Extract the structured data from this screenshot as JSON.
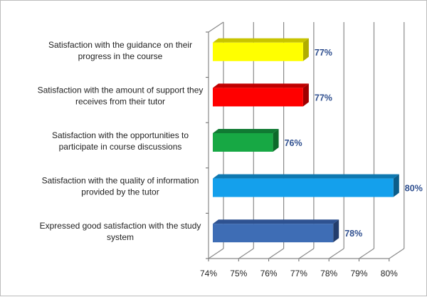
{
  "chart_data": {
    "type": "bar",
    "orientation": "horizontal",
    "style": "3d",
    "title": "",
    "xlabel": "",
    "ylabel": "",
    "categories": [
      [
        "Satisfaction with the guidance on their",
        "progress in the course"
      ],
      [
        "Satisfaction with the amount of support they",
        "receives from their tutor"
      ],
      [
        "Satisfaction with the opportunities to",
        "participate in course discussions"
      ],
      [
        "Satisfaction with the quality of information",
        "provided by the tutor"
      ],
      [
        "Expressed good satisfaction with the study",
        "system"
      ]
    ],
    "values": [
      77,
      77,
      76,
      80,
      78
    ],
    "data_labels": [
      "77%",
      "77%",
      "76%",
      "80%",
      "78%"
    ],
    "colors": [
      "#ffff00",
      "#ff0000",
      "#17a844",
      "#14a0ec",
      "#3e6db5"
    ],
    "side_colors": [
      "#b0ad00",
      "#a00000",
      "#0d6a2a",
      "#0b5d8a",
      "#233d6c"
    ],
    "top_colors": [
      "#c8c400",
      "#c00000",
      "#107a33",
      "#0f78b0",
      "#2e5291"
    ],
    "xlim": [
      74,
      80
    ],
    "xticks": [
      "74%",
      "75%",
      "76%",
      "77%",
      "78%",
      "79%",
      "80%"
    ],
    "grid": true,
    "legend": "none",
    "label_color": "#2f4f8f"
  }
}
